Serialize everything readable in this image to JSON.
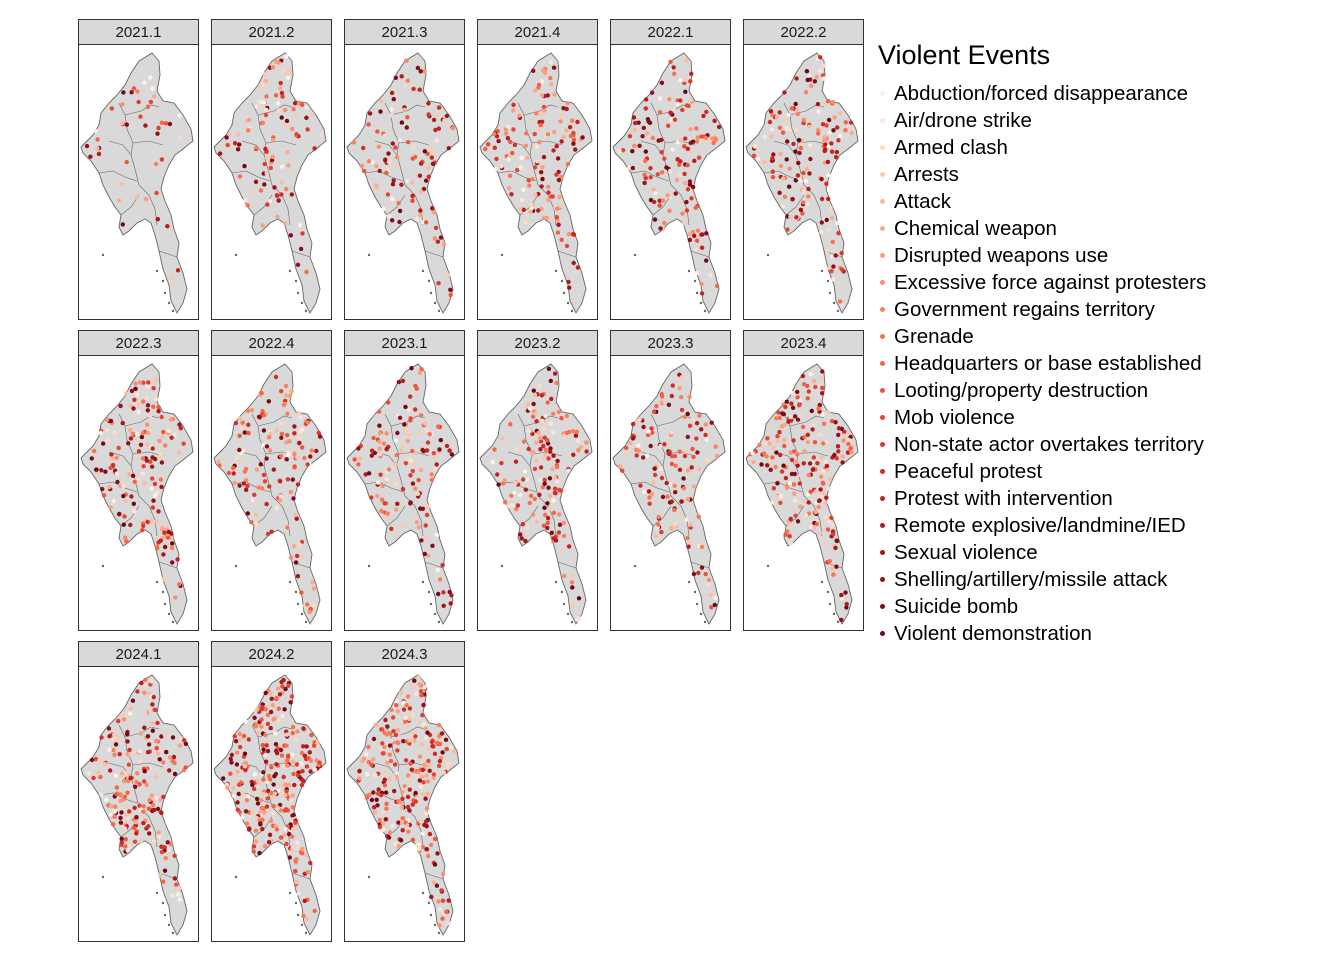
{
  "panels": [
    {
      "label": "2021.1",
      "density": 45
    },
    {
      "label": "2021.2",
      "density": 110
    },
    {
      "label": "2021.3",
      "density": 115
    },
    {
      "label": "2021.4",
      "density": 150
    },
    {
      "label": "2022.1",
      "density": 155
    },
    {
      "label": "2022.2",
      "density": 165
    },
    {
      "label": "2022.3",
      "density": 175
    },
    {
      "label": "2022.4",
      "density": 150
    },
    {
      "label": "2023.1",
      "density": 140
    },
    {
      "label": "2023.2",
      "density": 165
    },
    {
      "label": "2023.3",
      "density": 140
    },
    {
      "label": "2023.4",
      "density": 220
    },
    {
      "label": "2024.1",
      "density": 210
    },
    {
      "label": "2024.2",
      "density": 300
    },
    {
      "label": "2024.3",
      "density": 260
    }
  ],
  "legend": {
    "title": "Violent Events",
    "items": [
      {
        "label": "Abduction/forced disappearance",
        "color": "#fff0e8"
      },
      {
        "label": "Air/drone strike",
        "color": "#fee5d9"
      },
      {
        "label": "Armed clash",
        "color": "#fdd9c6"
      },
      {
        "label": "Arrests",
        "color": "#fcc9b0"
      },
      {
        "label": "Attack",
        "color": "#fcbba1"
      },
      {
        "label": "Chemical weapon",
        "color": "#fcab8d"
      },
      {
        "label": "Disrupted weapons use",
        "color": "#fc9d7d"
      },
      {
        "label": "Excessive force against protesters",
        "color": "#fb8d6c"
      },
      {
        "label": "Government regains territory",
        "color": "#fb7f5e"
      },
      {
        "label": "Grenade",
        "color": "#f87150"
      },
      {
        "label": "Headquarters or base established",
        "color": "#f46446"
      },
      {
        "label": "Looting/property destruction",
        "color": "#ef553c"
      },
      {
        "label": "Mob violence",
        "color": "#e64633"
      },
      {
        "label": "Non-state actor overtakes territory",
        "color": "#dc3a2c"
      },
      {
        "label": "Peaceful protest",
        "color": "#d02d26"
      },
      {
        "label": "Protest with intervention",
        "color": "#c32221"
      },
      {
        "label": "Remote explosive/landmine/IED",
        "color": "#b51a1d"
      },
      {
        "label": "Sexual violence",
        "color": "#a6141b"
      },
      {
        "label": "Shelling/artillery/missile attack",
        "color": "#950f18"
      },
      {
        "label": "Suicide bomb",
        "color": "#830b16"
      },
      {
        "label": "Violent demonstration",
        "color": "#6f0814"
      }
    ]
  },
  "map_fill": "#d9d9d9",
  "map_border": "#666666"
}
